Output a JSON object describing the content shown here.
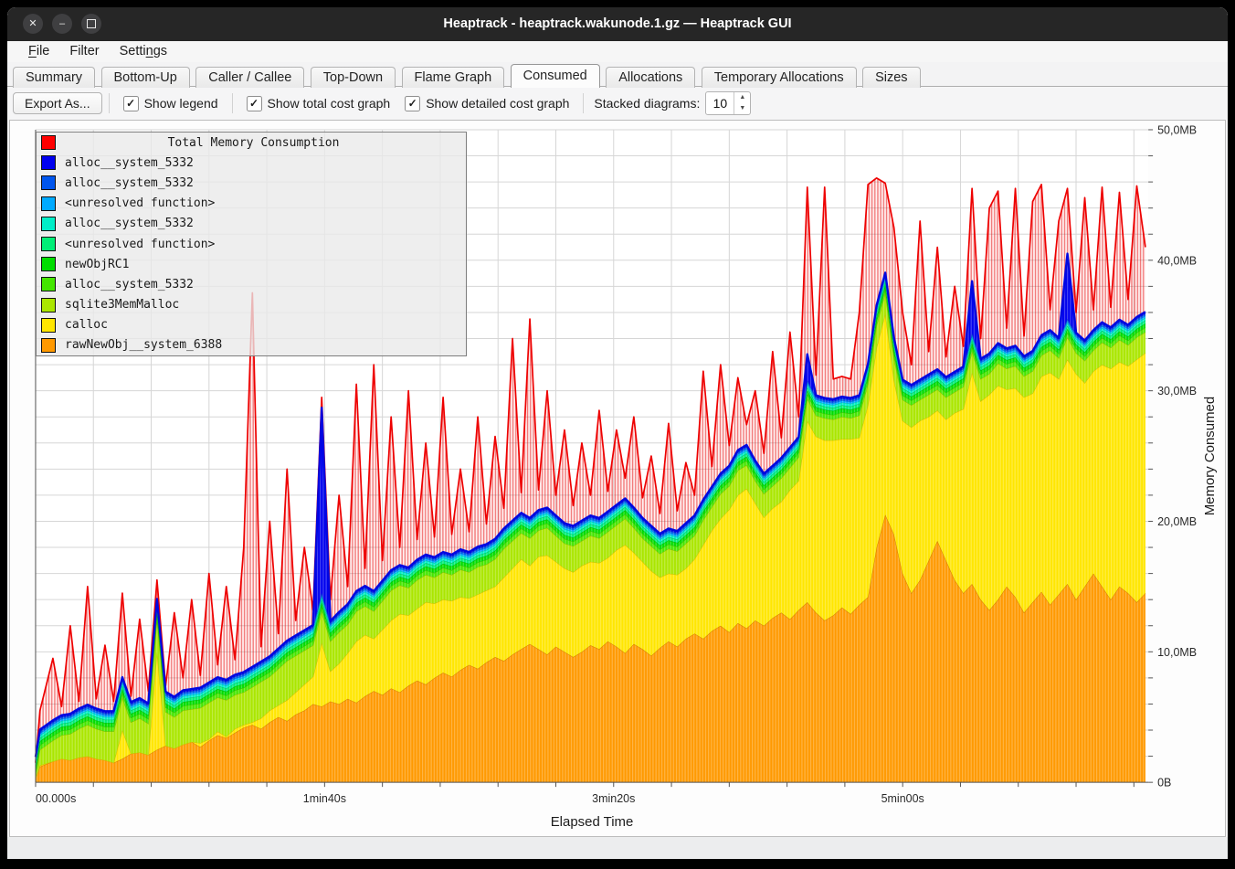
{
  "window": {
    "title": "Heaptrack - heaptrack.wakunode.1.gz — Heaptrack GUI",
    "controls": {
      "close": "✕",
      "minimize": "–",
      "maximize": "□"
    }
  },
  "menu": {
    "items": [
      {
        "label": "File",
        "accel_index": 0
      },
      {
        "label": "Filter",
        "accel_index": -1
      },
      {
        "label": "Settings",
        "accel_index": 5
      }
    ]
  },
  "tabs": {
    "items": [
      {
        "label": "Summary",
        "active": false
      },
      {
        "label": "Bottom-Up",
        "active": false
      },
      {
        "label": "Caller / Callee",
        "active": false
      },
      {
        "label": "Top-Down",
        "active": false
      },
      {
        "label": "Flame Graph",
        "active": false
      },
      {
        "label": "Consumed",
        "active": true
      },
      {
        "label": "Allocations",
        "active": false
      },
      {
        "label": "Temporary Allocations",
        "active": false
      },
      {
        "label": "Sizes",
        "active": false
      }
    ]
  },
  "toolbar": {
    "export_label": "Export As...",
    "checkboxes": [
      {
        "label": "Show legend",
        "checked": true
      },
      {
        "label": "Show total cost graph",
        "checked": true
      },
      {
        "label": "Show detailed cost graph",
        "checked": true
      }
    ],
    "stacked_label": "Stacked diagrams:",
    "stacked_value": "10"
  },
  "legend": {
    "title": "Total Memory Consumption",
    "title_color": "#ff0000",
    "items": [
      {
        "label": "alloc__system_5332",
        "color": "#0000ee"
      },
      {
        "label": "alloc__system_5332",
        "color": "#0055ee"
      },
      {
        "label": "<unresolved function>",
        "color": "#00aaff"
      },
      {
        "label": "alloc__system_5332",
        "color": "#00eec8"
      },
      {
        "label": "<unresolved function>",
        "color": "#00ee77"
      },
      {
        "label": "newObjRC1",
        "color": "#00dd00"
      },
      {
        "label": "alloc__system_5332",
        "color": "#44e600"
      },
      {
        "label": "sqlite3MemMalloc",
        "color": "#aae600"
      },
      {
        "label": "calloc",
        "color": "#ffe600"
      },
      {
        "label": "rawNewObj__system_6388",
        "color": "#ff9900"
      }
    ]
  },
  "chart_data": {
    "type": "area",
    "title": "Total Memory Consumption",
    "xlabel": "Elapsed Time",
    "ylabel": "Memory Consumed",
    "xlim_s": [
      0,
      385
    ],
    "ylim_mb": [
      0,
      50
    ],
    "grid": {
      "x_step_s": 20,
      "y_step_mb": 2
    },
    "x_ticks": [
      {
        "t": 0,
        "label": "00.000s"
      },
      {
        "t": 100,
        "label": "1min40s"
      },
      {
        "t": 200,
        "label": "3min20s"
      },
      {
        "t": 300,
        "label": "5min00s"
      }
    ],
    "y_ticks": [
      {
        "v": 0,
        "label": "0B"
      },
      {
        "v": 10,
        "label": "10,0MB"
      },
      {
        "v": 20,
        "label": "20,0MB"
      },
      {
        "v": 30,
        "label": "30,0MB"
      },
      {
        "v": 40,
        "label": "40,0MB"
      },
      {
        "v": 50,
        "label": "50,0MB"
      }
    ],
    "x": [
      0,
      1.5,
      6,
      9,
      12,
      15,
      18,
      21,
      24,
      27,
      30,
      33,
      36,
      39,
      42,
      45,
      48,
      51,
      54,
      57,
      60,
      63,
      66,
      69,
      72,
      75,
      78,
      81,
      84,
      87,
      90,
      93,
      96,
      99,
      102,
      105,
      108,
      111,
      114,
      117,
      120,
      123,
      126,
      129,
      132,
      135,
      138,
      141,
      144,
      147,
      150,
      153,
      156,
      159,
      162,
      165,
      168,
      171,
      174,
      177,
      180,
      183,
      186,
      189,
      192,
      195,
      198,
      201,
      204,
      207,
      210,
      213,
      216,
      219,
      222,
      225,
      228,
      231,
      234,
      237,
      240,
      243,
      246,
      249,
      252,
      255,
      258,
      261,
      264,
      267,
      270,
      273,
      276,
      279,
      282,
      285,
      288,
      291,
      294,
      297,
      300,
      303,
      306,
      309,
      312,
      315,
      318,
      321,
      324,
      327,
      330,
      333,
      336,
      339,
      342,
      345,
      348,
      351,
      354,
      357,
      360,
      363,
      366,
      369,
      372,
      375,
      378,
      381,
      384
    ],
    "total": {
      "name": "Total Memory Consumption",
      "color": "#ff0000",
      "values": [
        1.5,
        5.5,
        9.5,
        5.8,
        12,
        6.2,
        15,
        6.4,
        10.5,
        6.2,
        14.5,
        6.6,
        12.5,
        7,
        15.5,
        7.4,
        13,
        8,
        14,
        8.2,
        16,
        9,
        15,
        9.4,
        18,
        37.5,
        10.4,
        20,
        11.4,
        24,
        12.4,
        18,
        13.2,
        29.5,
        14,
        22,
        15,
        30.5,
        16.4,
        32,
        17,
        28,
        18,
        30,
        18.6,
        26,
        18.8,
        29.5,
        19,
        24,
        19.2,
        28,
        19.8,
        26.5,
        21,
        34,
        22.2,
        35.5,
        22.4,
        30,
        22,
        27,
        21.2,
        26,
        22,
        28.5,
        22.3,
        27,
        23.3,
        28,
        21.8,
        25,
        20.6,
        27.5,
        20.8,
        24.5,
        22,
        31.5,
        24.2,
        32,
        25.8,
        31,
        27.4,
        30,
        25.2,
        33,
        26.4,
        34.5,
        28,
        45.6,
        31.2,
        45.6,
        30.9,
        31.1,
        30.9,
        36,
        45.8,
        46.3,
        45.9,
        42.5,
        36,
        32,
        43,
        33,
        41,
        32.6,
        38,
        33.4,
        45.5,
        34,
        44,
        45.3,
        34.8,
        45.5,
        34.2,
        44.5,
        45.8,
        36.2,
        43,
        45.5,
        36,
        44.8,
        36.2,
        45.6,
        36.4,
        45.2,
        37,
        45.7,
        41
      ]
    },
    "series": [
      {
        "name": "rawNewObj__system_6388",
        "color": "#ff9900",
        "values": [
          0.3,
          1.2,
          1.6,
          1.8,
          1.7,
          1.9,
          2,
          1.8,
          1.7,
          1.5,
          1.8,
          2.2,
          2.3,
          2.1,
          2.5,
          2.8,
          2.6,
          2.9,
          3.1,
          2.7,
          3.2,
          3.6,
          3.4,
          3.8,
          4.2,
          4.4,
          4.1,
          4.6,
          5,
          4.7,
          5.2,
          5.5,
          6,
          5.8,
          6.2,
          6,
          6.4,
          6.1,
          6.6,
          7,
          6.7,
          7.2,
          6.9,
          7.4,
          7.8,
          7.5,
          8,
          8.4,
          8.1,
          8.6,
          9,
          8.7,
          9.2,
          9.6,
          9.3,
          9.8,
          10.2,
          10.6,
          10.2,
          9.8,
          10.4,
          10,
          9.6,
          10,
          10.5,
          10.2,
          10.8,
          10.4,
          9.9,
          10.6,
          10.2,
          9.7,
          10.3,
          10.8,
          10.4,
          11,
          11.4,
          11,
          11.6,
          12,
          11.5,
          12.2,
          11.8,
          12.4,
          12,
          12.6,
          13,
          12.5,
          13.2,
          13.8,
          13,
          12.4,
          12.8,
          13.4,
          12.9,
          13.6,
          14.2,
          18,
          20.5,
          19,
          16,
          14.5,
          15.5,
          17,
          18.5,
          17,
          15.5,
          14.5,
          15.2,
          14,
          13.2,
          14,
          15,
          14.2,
          13,
          13.8,
          14.6,
          13.6,
          14.4,
          15.2,
          14,
          15,
          16,
          15,
          14,
          15,
          14.5,
          13.8,
          14.5
        ]
      },
      {
        "name": "calloc",
        "color": "#ffe600",
        "values": [
          0,
          0.1,
          0,
          0,
          0,
          0,
          0,
          0,
          0,
          0,
          2.2,
          0,
          0,
          0,
          7.5,
          0,
          0,
          0,
          0,
          0.3,
          0.1,
          0.3,
          0.1,
          0.3,
          0.2,
          0.2,
          0.8,
          0.9,
          0.9,
          1.6,
          1.7,
          2,
          2.1,
          4.9,
          2.3,
          3.1,
          3.5,
          4.7,
          4.7,
          4,
          5,
          5.2,
          6,
          5.4,
          5.5,
          6.3,
          5.7,
          5.6,
          5.8,
          5.6,
          5.1,
          5.7,
          5.5,
          5.4,
          6.4,
          6.6,
          6.9,
          6,
          7.1,
          7.6,
          6.5,
          6.4,
          6.5,
          6.6,
          6.4,
          6.6,
          6.4,
          7.4,
          8.3,
          7,
          6.7,
          6.5,
          5.4,
          5.2,
          5.5,
          5.4,
          5.7,
          7.2,
          7.7,
          8.2,
          9.4,
          9.8,
          10.7,
          9,
          8.3,
          8.4,
          8.5,
          9.9,
          9.9,
          13.9,
          13.5,
          13.8,
          13.4,
          12.9,
          13.4,
          12.8,
          14.7,
          15.3,
          15.4,
          11.8,
          11.7,
          12.7,
          12.2,
          11,
          10,
          10.8,
          12.8,
          14.1,
          16.2,
          15.2,
          16.5,
          16.4,
          15.1,
          16,
          16.5,
          16,
          16.5,
          17.8,
          16.5,
          17.2,
          17.3,
          15.6,
          15.5,
          17,
          17.7,
          17.2,
          17.4,
          18.6,
          18.4
        ]
      },
      {
        "name": "sqlite3MemMalloc",
        "color": "#aae600",
        "values": [
          0.1,
          1.2,
          1.6,
          1.8,
          2,
          2.2,
          2.4,
          2.3,
          2.2,
          2.4,
          2.5,
          2.4,
          2.6,
          2.4,
          2.5,
          2.6,
          2.4,
          2.6,
          2.5,
          2.7,
          2.8,
          2.6,
          2.8,
          2.6,
          2.5,
          2.7,
          2.8,
          2.6,
          2.8,
          3,
          2.8,
          2.6,
          2.4,
          2.4,
          2.3,
          2.4,
          2.2,
          2.3,
          2.2,
          2.1,
          2.2,
          2.3,
          2.2,
          2.1,
          2.2,
          2.1,
          2,
          2.1,
          2,
          2.1,
          2,
          2.1,
          2,
          2.1,
          2.2,
          2.1,
          2,
          2.1,
          2,
          2.1,
          2,
          1.9,
          2,
          1.9,
          2,
          1.9,
          2,
          1.9,
          2,
          1.9,
          1.8,
          1.9,
          1.8,
          1.9,
          1.8,
          1.9,
          1.8,
          1.9,
          1.8,
          1.9,
          1.8,
          1.9,
          1.8,
          1.7,
          1.8,
          1.7,
          1.8,
          1.7,
          1.8,
          1.7,
          1.6,
          1.7,
          1.6,
          1.7,
          1.6,
          1.7,
          1.6,
          1.7,
          1.6,
          1.7,
          1.6,
          1.7,
          1.6,
          1.7,
          1.6,
          1.7,
          1.6,
          1.7,
          1.6,
          1.7,
          1.6,
          1.7,
          1.6,
          1.7,
          1.6,
          1.7,
          1.6,
          1.7,
          1.6,
          1.7,
          1.6,
          1.7,
          1.6,
          1.7,
          1.6,
          1.7,
          1.6,
          1.7,
          1.6
        ]
      },
      {
        "name": "alloc__system_5332",
        "color": "#44e600",
        "const": 0.35
      },
      {
        "name": "newObjRC1",
        "color": "#00dd00",
        "const": 0.3
      },
      {
        "name": "<unresolved function>",
        "color": "#00ee77",
        "const": 0.25
      },
      {
        "name": "alloc__system_5332",
        "color": "#00eec8",
        "const": 0.2
      },
      {
        "name": "<unresolved function>",
        "color": "#00aaff",
        "const": 0.15
      },
      {
        "name": "alloc__system_5332",
        "color": "#0055ee",
        "const": 0.15
      },
      {
        "name": "alloc__system_5332",
        "color": "#0000ee",
        "const": 0.15,
        "spikes": {
          "33": 14.2,
          "89": 2.0,
          "108": 4.0,
          "119": 5.0
        }
      }
    ]
  }
}
